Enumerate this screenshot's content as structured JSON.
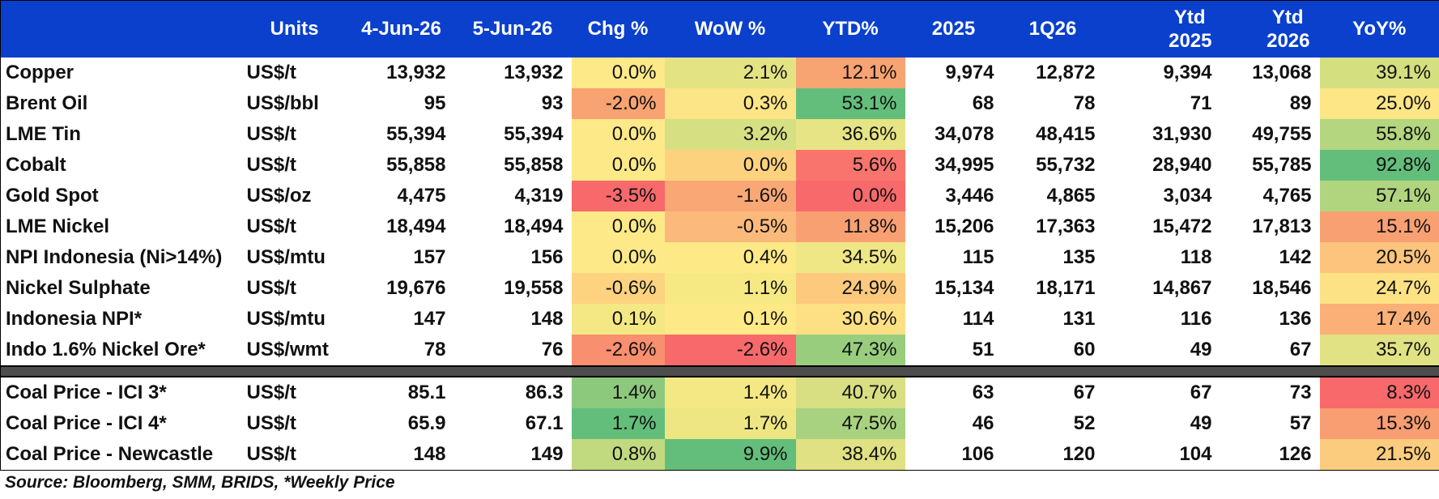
{
  "header": {
    "name": "",
    "units": "Units",
    "d1": "4-Jun-26",
    "d2": "5-Jun-26",
    "chg": "Chg %",
    "wow": "WoW %",
    "ytd": "YTD%",
    "y2025": "2025",
    "q126": "1Q26",
    "ytd2025_a": "Ytd",
    "ytd2025_b": "2025",
    "ytd2026_a": "Ytd",
    "ytd2026_b": "2026",
    "yoy": "YoY%"
  },
  "rows": [
    {
      "name": "Copper",
      "unit": "US$/t",
      "d1": "13,932",
      "d2": "13,932",
      "chg": "0.0%",
      "wow": "2.1%",
      "ytd": "12.1%",
      "y2025": "9,974",
      "q126": "12,872",
      "ytd2025": "9,394",
      "ytd2026": "13,068",
      "yoy": "39.1%",
      "chg_color": "#fde988",
      "wow_color": "#e4e383",
      "ytd_color": "#f8a372",
      "yoy_color": "#d4df80"
    },
    {
      "name": "Brent Oil",
      "unit": "US$/bbl",
      "d1": "95",
      "d2": "93",
      "chg": "-2.0%",
      "wow": "0.3%",
      "ytd": "53.1%",
      "y2025": "68",
      "q126": "78",
      "ytd2025": "71",
      "ytd2026": "89",
      "yoy": "25.0%",
      "chg_color": "#f9a272",
      "wow_color": "#fce586",
      "ytd_color": "#63be7b",
      "yoy_color": "#fde685"
    },
    {
      "name": "LME Tin",
      "unit": "US$/t",
      "d1": "55,394",
      "d2": "55,394",
      "chg": "0.0%",
      "wow": "3.2%",
      "ytd": "36.6%",
      "y2025": "34,078",
      "q126": "48,415",
      "ytd2025": "31,930",
      "ytd2026": "49,755",
      "yoy": "55.8%",
      "chg_color": "#fde988",
      "wow_color": "#d6e082",
      "ytd_color": "#e6e484",
      "yoy_color": "#b3d67f"
    },
    {
      "name": "Cobalt",
      "unit": "US$/t",
      "d1": "55,858",
      "d2": "55,858",
      "chg": "0.0%",
      "wow": "0.0%",
      "ytd": "5.6%",
      "y2025": "34,995",
      "q126": "55,732",
      "ytd2025": "28,940",
      "ytd2026": "55,785",
      "yoy": "92.8%",
      "chg_color": "#fde988",
      "wow_color": "#fdd27f",
      "ytd_color": "#f8746d",
      "yoy_color": "#63be7b"
    },
    {
      "name": "Gold Spot",
      "unit": "US$/oz",
      "d1": "4,475",
      "d2": "4,319",
      "chg": "-3.5%",
      "wow": "-1.6%",
      "ytd": "0.0%",
      "y2025": "3,446",
      "q126": "4,865",
      "ytd2025": "3,034",
      "ytd2026": "4,765",
      "yoy": "57.1%",
      "chg_color": "#f8696b",
      "wow_color": "#f9a775",
      "ytd_color": "#f8696b",
      "yoy_color": "#b1d57f"
    },
    {
      "name": "LME Nickel",
      "unit": "US$/t",
      "d1": "18,494",
      "d2": "18,494",
      "chg": "0.0%",
      "wow": "-0.5%",
      "ytd": "11.8%",
      "y2025": "15,206",
      "q126": "17,363",
      "ytd2025": "15,472",
      "ytd2026": "17,813",
      "yoy": "15.1%",
      "chg_color": "#fde988",
      "wow_color": "#fbba7b",
      "ytd_color": "#f9a073",
      "yoy_color": "#f9a072"
    },
    {
      "name": "NPI Indonesia (Ni>14%)",
      "unit": "US$/mtu",
      "d1": "157",
      "d2": "156",
      "chg": "0.0%",
      "wow": "0.4%",
      "ytd": "34.5%",
      "y2025": "115",
      "q126": "135",
      "ytd2025": "118",
      "ytd2026": "142",
      "yoy": "20.5%",
      "chg_color": "#fde988",
      "wow_color": "#fde986",
      "ytd_color": "#efe685",
      "yoy_color": "#fcc47c"
    },
    {
      "name": "Nickel Sulphate",
      "unit": "US$/t",
      "d1": "19,676",
      "d2": "19,558",
      "chg": "-0.6%",
      "wow": "1.1%",
      "ytd": "24.9%",
      "y2025": "15,134",
      "q126": "18,171",
      "ytd2025": "14,867",
      "ytd2026": "18,546",
      "yoy": "24.7%",
      "chg_color": "#fdd380",
      "wow_color": "#f6e984",
      "ytd_color": "#fdc97c",
      "yoy_color": "#fde285"
    },
    {
      "name": "Indonesia NPI*",
      "unit": "US$/mtu",
      "d1": "147",
      "d2": "148",
      "chg": "0.1%",
      "wow": "0.1%",
      "ytd": "30.6%",
      "y2025": "114",
      "q126": "131",
      "ytd2025": "116",
      "ytd2026": "136",
      "yoy": "17.4%",
      "chg_color": "#f4e884",
      "wow_color": "#fde985",
      "ytd_color": "#fde083",
      "yoy_color": "#fab077"
    },
    {
      "name": "Indo 1.6% Nickel Ore*",
      "unit": "US$/wmt",
      "d1": "78",
      "d2": "76",
      "chg": "-2.6%",
      "wow": "-2.6%",
      "ytd": "47.3%",
      "y2025": "51",
      "q126": "60",
      "ytd2025": "49",
      "ytd2026": "67",
      "yoy": "35.7%",
      "chg_color": "#f88f6f",
      "wow_color": "#f8696b",
      "ytd_color": "#98cd7e",
      "yoy_color": "#e1e283"
    }
  ],
  "coal_rows": [
    {
      "name": "Coal Price - ICI 3*",
      "unit": "US$/t",
      "d1": "85.1",
      "d2": "86.3",
      "chg": "1.4%",
      "wow": "1.4%",
      "ytd": "40.7%",
      "y2025": "63",
      "q126": "67",
      "ytd2025": "67",
      "ytd2026": "73",
      "yoy": "8.3%",
      "chg_color": "#8cc97d",
      "wow_color": "#f4e884",
      "ytd_color": "#d7df82",
      "yoy_color": "#f8696b"
    },
    {
      "name": "Coal Price - ICI 4*",
      "unit": "US$/t",
      "d1": "65.9",
      "d2": "67.1",
      "chg": "1.7%",
      "wow": "1.7%",
      "ytd": "47.5%",
      "y2025": "46",
      "q126": "52",
      "ytd2025": "49",
      "ytd2026": "57",
      "yoy": "15.3%",
      "chg_color": "#63be7b",
      "wow_color": "#eee683",
      "ytd_color": "#a8d27f",
      "yoy_color": "#f99d72"
    },
    {
      "name": "Coal Price - Newcastle",
      "unit": "US$/t",
      "d1": "148",
      "d2": "149",
      "chg": "0.8%",
      "wow": "9.9%",
      "ytd": "38.4%",
      "y2025": "106",
      "q126": "120",
      "ytd2025": "104",
      "ytd2026": "126",
      "yoy": "21.5%",
      "chg_color": "#c1da80",
      "wow_color": "#63be7b",
      "ytd_color": "#e0e183",
      "yoy_color": "#fccc7e"
    }
  ],
  "footer": {
    "source": "Source: Bloomberg, SMM, BRIDS, *Weekly Price"
  }
}
